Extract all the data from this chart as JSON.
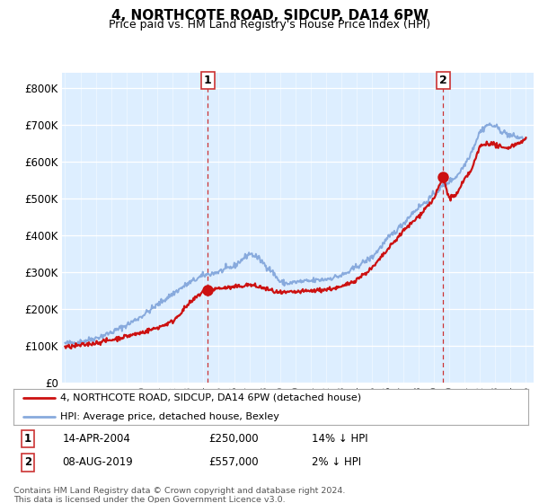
{
  "title": "4, NORTHCOTE ROAD, SIDCUP, DA14 6PW",
  "subtitle": "Price paid vs. HM Land Registry's House Price Index (HPI)",
  "background_color": "#ffffff",
  "plot_bg_color": "#ddeeff",
  "ylabel_ticks": [
    "£0",
    "£100K",
    "£200K",
    "£300K",
    "£400K",
    "£500K",
    "£600K",
    "£700K",
    "£800K"
  ],
  "ytick_values": [
    0,
    100000,
    200000,
    300000,
    400000,
    500000,
    600000,
    700000,
    800000
  ],
  "ylim": [
    0,
    840000
  ],
  "xlim_start": 1994.8,
  "xlim_end": 2025.5,
  "sale1_x": 2004.29,
  "sale1_y": 250000,
  "sale2_x": 2019.6,
  "sale2_y": 557000,
  "legend_line1": "4, NORTHCOTE ROAD, SIDCUP, DA14 6PW (detached house)",
  "legend_line2": "HPI: Average price, detached house, Bexley",
  "annot1_date": "14-APR-2004",
  "annot1_price": "£250,000",
  "annot1_hpi": "14% ↓ HPI",
  "annot2_date": "08-AUG-2019",
  "annot2_price": "£557,000",
  "annot2_hpi": "2% ↓ HPI",
  "footnote": "Contains HM Land Registry data © Crown copyright and database right 2024.\nThis data is licensed under the Open Government Licence v3.0.",
  "hpi_color": "#88aadd",
  "sale_color": "#cc1111",
  "dashed_line_color": "#cc3333"
}
